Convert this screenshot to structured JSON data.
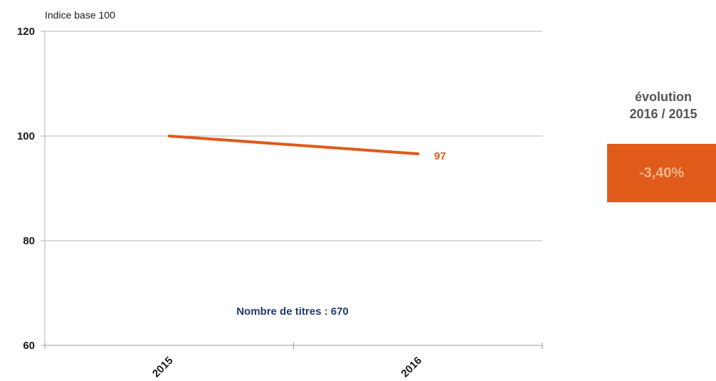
{
  "chart_data": {
    "type": "line",
    "unit_label": "Indice base 100",
    "categories": [
      "2015",
      "2016"
    ],
    "series": [
      {
        "values": [
          100,
          96.6
        ],
        "color": "#e05a1a"
      }
    ],
    "end_label": "97",
    "y_ticks": [
      "60",
      "80",
      "100",
      "120"
    ],
    "ylim": [
      60,
      120
    ],
    "grid": true,
    "annotation": "Nombre de titres : 670",
    "annotation_color": "#1f3b6e"
  },
  "evolution": {
    "title_line1": "évolution",
    "title_line2": "2016 / 2015",
    "value": "-3,40%",
    "box_color": "#e05a1a"
  }
}
